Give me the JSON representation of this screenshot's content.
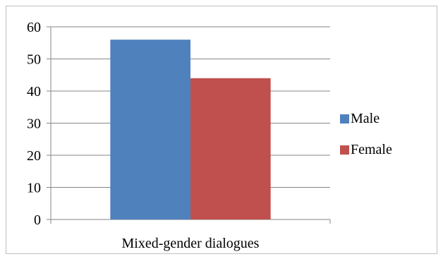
{
  "chart_data": {
    "type": "bar",
    "categories": [
      "Mixed-gender dialogues"
    ],
    "series": [
      {
        "name": "Male",
        "values": [
          56
        ],
        "color": "#4f81bd"
      },
      {
        "name": "Female",
        "values": [
          44
        ],
        "color": "#c0504d"
      }
    ],
    "ylim": [
      0,
      60
    ],
    "yticks": [
      0,
      10,
      20,
      30,
      40,
      50,
      60
    ],
    "grid": true,
    "legend_position": "right",
    "title": "",
    "xlabel": "",
    "ylabel": ""
  }
}
